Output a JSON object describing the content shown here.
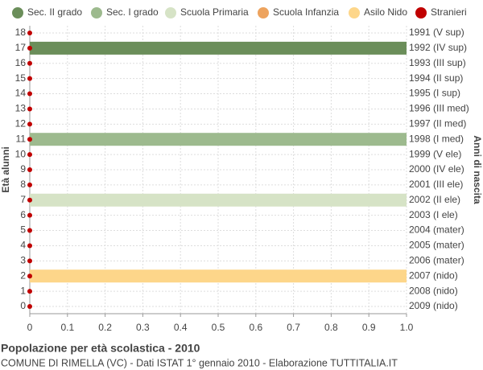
{
  "chart_data": {
    "type": "bar",
    "orientation": "horizontal",
    "title": "Popolazione per età scolastica - 2010",
    "subtitle": "COMUNE DI RIMELLA (VC) - Dati ISTAT 1° gennaio 2010 - Elaborazione TUTTITALIA.IT",
    "y_label": "Età alunni",
    "y2_label": "Anni di nascita",
    "categories": [
      "0",
      "1",
      "2",
      "3",
      "4",
      "5",
      "6",
      "7",
      "8",
      "9",
      "10",
      "11",
      "12",
      "13",
      "14",
      "15",
      "16",
      "17",
      "18"
    ],
    "year_labels": [
      "2009 (nido)",
      "2008 (nido)",
      "2007 (nido)",
      "2006 (mater)",
      "2005 (mater)",
      "2004 (mater)",
      "2003 (I ele)",
      "2002 (II ele)",
      "2001 (III ele)",
      "2000 (IV ele)",
      "1999 (V ele)",
      "1998 (I med)",
      "1997 (II med)",
      "1996 (III med)",
      "1995 (I sup)",
      "1994 (II sup)",
      "1993 (III sup)",
      "1992 (IV sup)",
      "1991 (V sup)"
    ],
    "series": [
      {
        "name": "Sec. II grado",
        "color": "#6b8e5a",
        "values": [
          null,
          null,
          null,
          null,
          null,
          null,
          null,
          null,
          null,
          null,
          null,
          null,
          null,
          null,
          null,
          null,
          null,
          1,
          null
        ]
      },
      {
        "name": "Sec. I grado",
        "color": "#9dba8e",
        "values": [
          null,
          null,
          null,
          null,
          null,
          null,
          null,
          null,
          null,
          null,
          null,
          1,
          null,
          null,
          null,
          null,
          null,
          null,
          null
        ]
      },
      {
        "name": "Scuola Primaria",
        "color": "#d6e3c6",
        "values": [
          null,
          null,
          null,
          null,
          null,
          null,
          null,
          1,
          null,
          null,
          null,
          null,
          null,
          null,
          null,
          null,
          null,
          null,
          null
        ]
      },
      {
        "name": "Scuola Infanzia",
        "color": "#eda35e",
        "values": [
          null,
          null,
          null,
          null,
          null,
          null,
          null,
          null,
          null,
          null,
          null,
          null,
          null,
          null,
          null,
          null,
          null,
          null,
          null
        ]
      },
      {
        "name": "Asilo Nido",
        "color": "#fdd68a",
        "values": [
          null,
          null,
          1,
          null,
          null,
          null,
          null,
          null,
          null,
          null,
          null,
          null,
          null,
          null,
          null,
          null,
          null,
          null,
          null
        ]
      },
      {
        "name": "Stranieri",
        "color": "#c00000",
        "marker": "dot",
        "values": [
          0,
          0,
          0,
          0,
          0,
          0,
          0,
          0,
          0,
          0,
          0,
          0,
          0,
          0,
          0,
          0,
          0,
          0,
          0
        ]
      }
    ],
    "xlim": [
      0,
      1
    ],
    "xticks": [
      0,
      0.1,
      0.2,
      0.3,
      0.4,
      0.5,
      0.6,
      0.7,
      0.8,
      0.9,
      {
        "value": 1,
        "label": "1.0"
      }
    ],
    "grid": true
  }
}
